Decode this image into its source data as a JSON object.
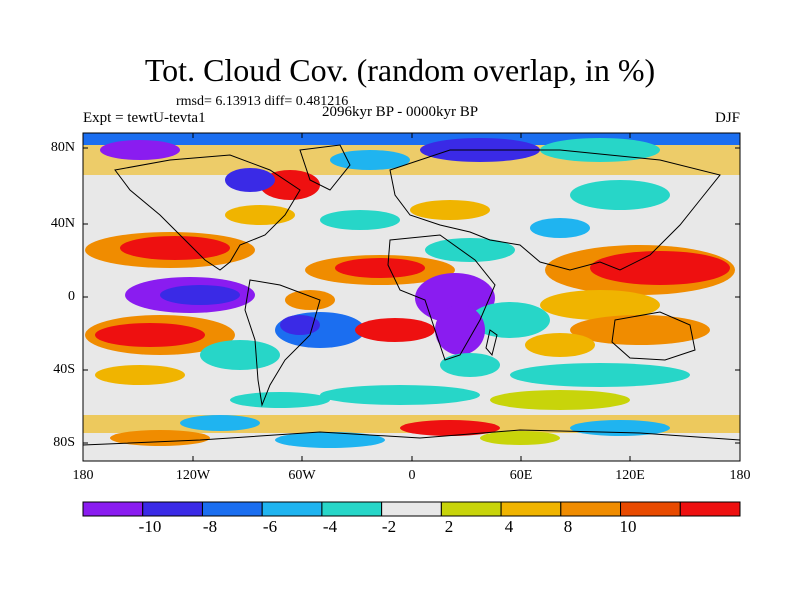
{
  "title": "Tot. Cloud Cov. (random overlap, in %)",
  "stats": "rmsd= 6.13913 diff= 0.481216",
  "experiment": "Expt = tewtU-tevta1",
  "period": "2096kyr BP - 0000kyr BP",
  "season": "DJF",
  "lat_labels": [
    "80N",
    "40N",
    "0",
    "40S",
    "80S"
  ],
  "lon_labels": [
    "180",
    "120W",
    "60W",
    "0",
    "60E",
    "120E",
    "180"
  ],
  "colorbar": {
    "labels": [
      "-10",
      "-8",
      "-6",
      "-4",
      "-2",
      "2",
      "4",
      "8",
      "10"
    ],
    "colors": [
      "#8a1cf0",
      "#3a2ae6",
      "#1b6ef0",
      "#1fb4f0",
      "#27d6c8",
      "#e8e8e8",
      "#c8d40a",
      "#f0b400",
      "#f08c00",
      "#e84a00",
      "#ee1010"
    ]
  },
  "colors": {
    "neutral": "#e8e8e8",
    "coastline": "#000000"
  }
}
